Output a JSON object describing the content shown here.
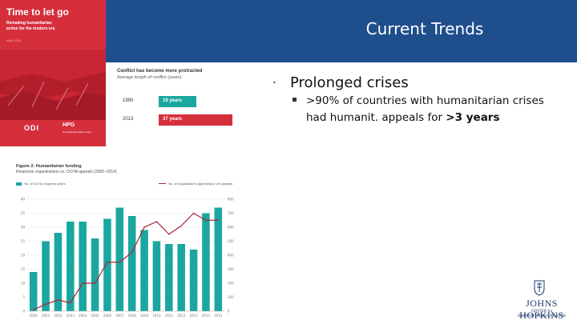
{
  "slide": {
    "title": "Current Trends"
  },
  "colors": {
    "header": "#1f4e8c",
    "red": "#d62f3c",
    "teal": "#1aa7a0",
    "line": "#b0243a",
    "navy": "#1d3a6b"
  },
  "cover": {
    "title": "Time to let go",
    "subtitle": "Remaking humanitarian action for the modern era",
    "date": "April 2016",
    "logo_odi": "ODI",
    "logo_hpg": "HPG",
    "logo_hpg_sub": "Humanitarian Policy Group"
  },
  "inset_conflict": {
    "title": "Conflict has become more protracted",
    "subtitle": "Average length of conflict (years)",
    "rows": [
      {
        "year": "1990",
        "value": 19,
        "label": "19 years"
      },
      {
        "year": "2013",
        "value": 37,
        "label": "37 years"
      }
    ]
  },
  "inset_spending": {
    "title": "Figure 2: Humanitarian funding",
    "subtitle": "Response organisations vs. OCHA appeals (2000–2014)",
    "legend_bar": "No. of OCHA response years",
    "legend_line": "No. of organisations appealing in UN appeals"
  },
  "chart_data": {
    "type": "bar+line",
    "categories": [
      "2000",
      "2001",
      "2002",
      "2003",
      "2004",
      "2005",
      "2006",
      "2007",
      "2008",
      "2009",
      "2010",
      "2011",
      "2012",
      "2013",
      "2014",
      "2015"
    ],
    "series": [
      {
        "name": "No. of OCHA response years",
        "type": "bar",
        "axis": "left",
        "values": [
          14,
          25,
          28,
          32,
          32,
          26,
          33,
          37,
          34,
          29,
          25,
          24,
          24,
          22,
          35,
          37
        ]
      },
      {
        "name": "No. of organisations appealing in UN appeals",
        "type": "line",
        "axis": "right",
        "values": [
          10,
          50,
          80,
          60,
          200,
          200,
          350,
          350,
          420,
          600,
          640,
          550,
          610,
          700,
          650,
          650
        ]
      }
    ],
    "y_left_ticks": [
      0,
      5,
      10,
      15,
      20,
      25,
      30,
      35,
      40
    ],
    "y_left_range": [
      0,
      40
    ],
    "y_right_ticks": [
      0,
      100,
      200,
      300,
      400,
      500,
      600,
      700,
      800
    ],
    "y_right_range": [
      0,
      800
    ]
  },
  "bullets": {
    "main": "Prolonged crises",
    "sub_before": ">90% of countries with humanitarian crises had humanit. appeals for ",
    "sub_bold": ">3 years"
  },
  "logo_jh": {
    "name": "JOHNS HOPKINS",
    "center_line1": "CENTER for",
    "center_line2": "HUMANITARIAN HEALTH"
  }
}
